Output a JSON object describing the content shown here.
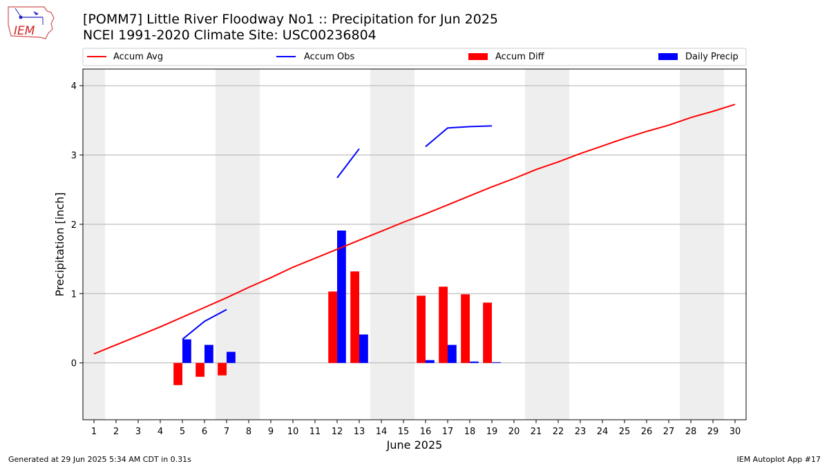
{
  "header": {
    "title_line1": "[POMM7] Little River Floodway No1 :: Precipitation for Jun 2025",
    "title_line2": "NCEI 1991-2020 Climate Site: USC00236804",
    "logo_text": "IEM"
  },
  "footer": {
    "left": "Generated at 29 Jun 2025 5:34 AM CDT in 0.31s",
    "right": "IEM Autoplot App #17"
  },
  "colors": {
    "avg": "#ff0000",
    "obs": "#0000ff",
    "diff": "#ff0000",
    "daily": "#0000ff",
    "weekend_band": "#eeeeee",
    "grid": "#b0b0b0"
  },
  "chart_data": {
    "type": "bar",
    "xlabel": "June 2025",
    "ylabel": "Precipitation [inch]",
    "xlim": [
      0.5,
      30.5
    ],
    "ylim": [
      -0.82,
      4.24
    ],
    "x_ticks": [
      1,
      2,
      3,
      4,
      5,
      6,
      7,
      8,
      9,
      10,
      11,
      12,
      13,
      14,
      15,
      16,
      17,
      18,
      19,
      20,
      21,
      22,
      23,
      24,
      25,
      26,
      27,
      28,
      29,
      30
    ],
    "y_ticks": [
      0,
      1,
      2,
      3,
      4
    ],
    "grid": "y",
    "legend_placement": "top",
    "legend": [
      "Accum Avg",
      "Accum Obs",
      "Accum Diff",
      "Daily Precip"
    ],
    "weekend_days": [
      1,
      7,
      8,
      14,
      15,
      21,
      22,
      28,
      29
    ],
    "series": [
      {
        "name": "Accum Avg",
        "kind": "line",
        "x": [
          1,
          2,
          3,
          4,
          5,
          6,
          7,
          8,
          9,
          10,
          11,
          12,
          13,
          14,
          15,
          16,
          17,
          18,
          19,
          20,
          21,
          22,
          23,
          24,
          25,
          26,
          27,
          28,
          29,
          30
        ],
        "values": [
          0.13,
          0.26,
          0.39,
          0.52,
          0.66,
          0.8,
          0.94,
          1.09,
          1.23,
          1.38,
          1.51,
          1.64,
          1.77,
          1.9,
          2.03,
          2.15,
          2.28,
          2.41,
          2.54,
          2.66,
          2.79,
          2.9,
          3.02,
          3.13,
          3.24,
          3.34,
          3.43,
          3.54,
          3.63,
          3.73
        ]
      },
      {
        "name": "Accum Obs",
        "kind": "line",
        "segments": [
          {
            "x": [
              5,
              6,
              7
            ],
            "values": [
              0.34,
              0.6,
              0.77
            ]
          },
          {
            "x": [
              12,
              13
            ],
            "values": [
              2.67,
              3.09
            ]
          },
          {
            "x": [
              16,
              17,
              18,
              19
            ],
            "values": [
              3.12,
              3.39,
              3.41,
              3.42
            ]
          }
        ]
      },
      {
        "name": "Accum Diff",
        "kind": "bar",
        "x": [
          5,
          6,
          7,
          12,
          13,
          16,
          17,
          18,
          19
        ],
        "values": [
          -0.32,
          -0.2,
          -0.18,
          1.03,
          1.32,
          0.97,
          1.1,
          0.99,
          0.87
        ]
      },
      {
        "name": "Daily Precip",
        "kind": "bar",
        "x": [
          5,
          6,
          7,
          12,
          13,
          16,
          17,
          18,
          19
        ],
        "values": [
          0.34,
          0.26,
          0.16,
          1.91,
          0.41,
          0.04,
          0.26,
          0.02,
          0.01
        ]
      }
    ]
  }
}
